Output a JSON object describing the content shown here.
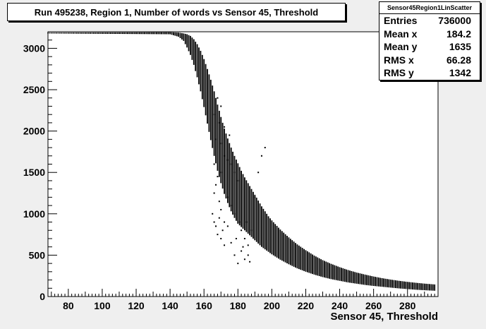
{
  "chart_data": {
    "type": "scatter",
    "title": "Run 495238, Region 1, Number of words vs Sensor 45, Threshold",
    "xlabel": "Sensor 45, Threshold",
    "ylabel": "",
    "xlim": [
      68,
      298
    ],
    "ylim": [
      0,
      3200
    ],
    "x_ticks": [
      80,
      100,
      120,
      140,
      160,
      180,
      200,
      220,
      240,
      260,
      280
    ],
    "y_ticks": [
      0,
      500,
      1000,
      1500,
      2000,
      2500,
      3000
    ],
    "grid": false,
    "series": [
      {
        "x": [
          68,
          140,
          145,
          148,
          150,
          152,
          154,
          156,
          158,
          160,
          162,
          164,
          166,
          168,
          170,
          172,
          174,
          176,
          178,
          180,
          182,
          184,
          186,
          188,
          190,
          192,
          194,
          196,
          198,
          200,
          205,
          210,
          215,
          220,
          225,
          230,
          235,
          240,
          245,
          250,
          255,
          260,
          265,
          270,
          275,
          280,
          285,
          290,
          296
        ],
        "y_low": [
          3180,
          3170,
          3140,
          3090,
          3010,
          2920,
          2800,
          2650,
          2480,
          2290,
          2090,
          1890,
          1700,
          1520,
          1370,
          1240,
          1130,
          1030,
          950,
          880,
          840,
          800,
          760,
          720,
          680,
          640,
          600,
          570,
          540,
          510,
          445,
          390,
          340,
          300,
          265,
          235,
          210,
          190,
          170,
          155,
          140,
          128,
          118,
          108,
          98,
          90,
          82,
          76,
          70
        ],
        "y_high": [
          3190,
          3195,
          3190,
          3180,
          3170,
          3150,
          3110,
          3050,
          2970,
          2870,
          2750,
          2620,
          2480,
          2320,
          2170,
          2030,
          1910,
          1800,
          1700,
          1610,
          1520,
          1440,
          1370,
          1300,
          1230,
          1160,
          1090,
          1030,
          970,
          920,
          810,
          715,
          630,
          560,
          495,
          440,
          395,
          355,
          320,
          290,
          265,
          242,
          222,
          205,
          190,
          177,
          166,
          156,
          146
        ]
      }
    ],
    "outliers": [
      [
        166,
        2200
      ],
      [
        167,
        1900
      ],
      [
        166,
        1600
      ],
      [
        166,
        1250
      ],
      [
        165,
        1000
      ],
      [
        166,
        900
      ],
      [
        167,
        850
      ],
      [
        168,
        2400
      ],
      [
        168,
        1450
      ],
      [
        169,
        1150
      ],
      [
        169,
        950
      ],
      [
        168,
        750
      ],
      [
        170,
        2300
      ],
      [
        170,
        1850
      ],
      [
        170,
        1050
      ],
      [
        170,
        700
      ],
      [
        171,
        800
      ],
      [
        172,
        1700
      ],
      [
        172,
        900
      ],
      [
        172,
        620
      ],
      [
        174,
        1650
      ],
      [
        174,
        1200
      ],
      [
        174,
        850
      ],
      [
        176,
        1600
      ],
      [
        176,
        1100
      ],
      [
        176,
        650
      ],
      [
        178,
        1500
      ],
      [
        178,
        1000
      ],
      [
        178,
        500
      ],
      [
        179,
        700
      ],
      [
        180,
        1400
      ],
      [
        180,
        400
      ],
      [
        181,
        900
      ],
      [
        182,
        800
      ],
      [
        182,
        550
      ],
      [
        183,
        600
      ],
      [
        184,
        450
      ],
      [
        185,
        900
      ],
      [
        186,
        500
      ],
      [
        187,
        420
      ],
      [
        188,
        800
      ],
      [
        190,
        1200
      ],
      [
        192,
        1500
      ],
      [
        194,
        1700
      ],
      [
        196,
        1800
      ],
      [
        172,
        2050
      ],
      [
        175,
        1950
      ],
      [
        169,
        2100
      ],
      [
        186,
        620
      ],
      [
        184,
        700
      ],
      [
        170,
        1500
      ],
      [
        167,
        1350
      ]
    ]
  },
  "stats": {
    "name": "Sensor45Region1LinScatter",
    "rows": [
      {
        "label": "Entries",
        "value": "736000"
      },
      {
        "label": "Mean x",
        "value": "184.2"
      },
      {
        "label": "Mean y",
        "value": "1635"
      },
      {
        "label": "RMS x",
        "value": "66.28"
      },
      {
        "label": "RMS y",
        "value": "1342"
      }
    ]
  }
}
